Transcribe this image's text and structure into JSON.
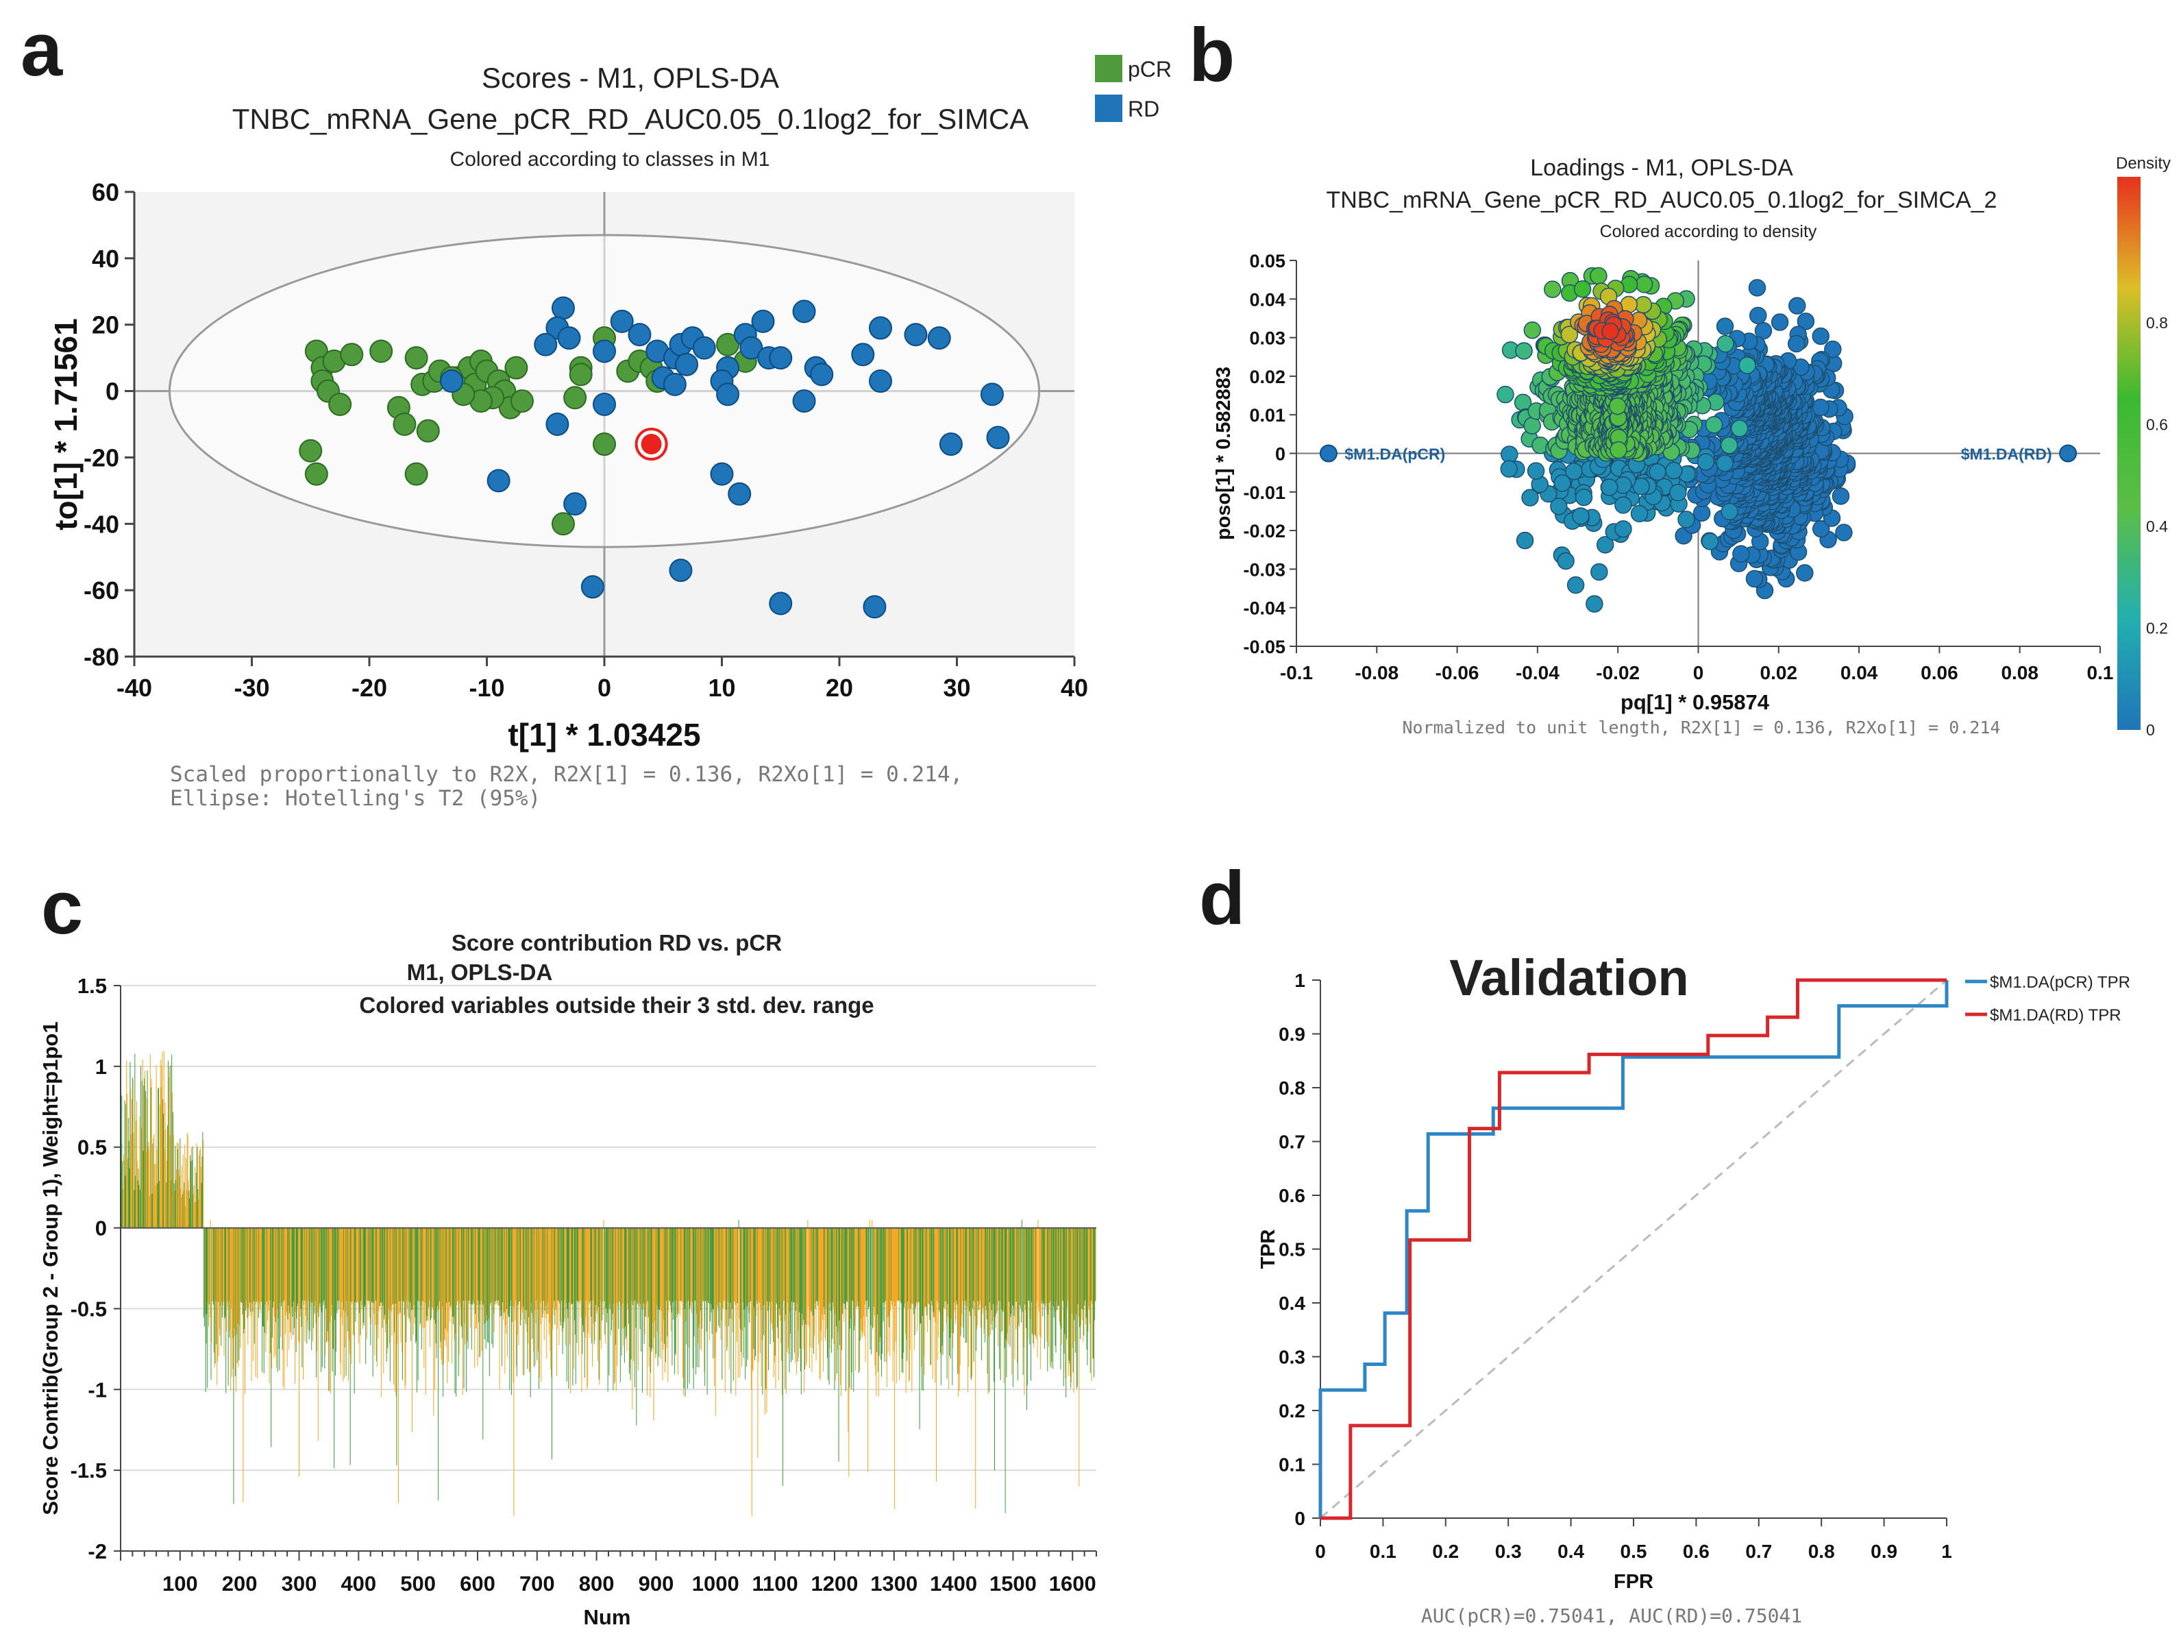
{
  "panels": {
    "a": "a",
    "b": "b",
    "c": "c",
    "d": "d"
  },
  "colors": {
    "pcr": "#4f9a3c",
    "rd": "#1f75b8",
    "highlight": "#e8231e",
    "green_bar": "#3d9a3d",
    "orange_bar": "#f5a51e",
    "roc_pcr": "#2d86c5",
    "roc_rd": "#d8262a"
  },
  "chart_data": [
    {
      "id": "a",
      "type": "scatter",
      "title": "Scores - M1, OPLS-DA",
      "subtitle": "TNBC_mRNA_Gene_pCR_RD_AUC0.05_0.1log2_for_SIMCA",
      "subtitle2": "Colored according to classes in M1",
      "xlabel": "t[1] * 1.03425",
      "ylabel": "to[1] * 1.71561",
      "xlim": [
        -40,
        40
      ],
      "ylim": [
        -80,
        60
      ],
      "xticks": [
        -40,
        -30,
        -20,
        -10,
        0,
        10,
        20,
        30,
        40
      ],
      "yticks": [
        -80,
        -60,
        -40,
        -20,
        0,
        20,
        40,
        60
      ],
      "ellipse": {
        "cx": 0,
        "cy": 0,
        "rx": 37,
        "ry": 47
      },
      "legend": [
        {
          "name": "pCR",
          "color": "#4f9a3c"
        },
        {
          "name": "RD",
          "color": "#1f75b8"
        }
      ],
      "footnote": "Scaled proportionally to R2X, R2X[1] = 0.136, R2Xo[1] = 0.214,",
      "footnote2": "Ellipse: Hotelling's T2 (95%)",
      "series": [
        {
          "name": "pCR",
          "points": [
            [
              -24.5,
              12
            ],
            [
              -24,
              7
            ],
            [
              -23,
              9
            ],
            [
              -21.5,
              11
            ],
            [
              -19,
              12
            ],
            [
              -16,
              10
            ],
            [
              -24,
              3
            ],
            [
              -23.5,
              0
            ],
            [
              -22.5,
              -4
            ],
            [
              -17.5,
              -5
            ],
            [
              -17,
              -10
            ],
            [
              -15.5,
              2
            ],
            [
              -14.5,
              3
            ],
            [
              -14,
              6
            ],
            [
              -15,
              -12
            ],
            [
              -12.5,
              4
            ],
            [
              -11.5,
              7
            ],
            [
              -11,
              2
            ],
            [
              -10.5,
              9
            ],
            [
              -10,
              6
            ],
            [
              -9,
              3
            ],
            [
              -8.5,
              0
            ],
            [
              -8,
              -5
            ],
            [
              -9.5,
              -2
            ],
            [
              -10.5,
              -3
            ],
            [
              -12,
              -1
            ],
            [
              -13,
              4
            ],
            [
              -7.5,
              7
            ],
            [
              -7,
              -3
            ],
            [
              -2,
              7
            ],
            [
              -2,
              5
            ],
            [
              -2.5,
              -2
            ],
            [
              0,
              16
            ],
            [
              2,
              6
            ],
            [
              3,
              9
            ],
            [
              4,
              7
            ],
            [
              4.5,
              3
            ],
            [
              10.5,
              14
            ],
            [
              12,
              9
            ],
            [
              -25,
              -18
            ],
            [
              -24.5,
              -25
            ],
            [
              -16,
              -25
            ],
            [
              -3.5,
              -40
            ],
            [
              0,
              -16
            ]
          ]
        },
        {
          "name": "RD",
          "points": [
            [
              -3.5,
              25
            ],
            [
              -4,
              19
            ],
            [
              -3,
              16
            ],
            [
              1.5,
              21
            ],
            [
              3,
              17
            ],
            [
              4.5,
              12
            ],
            [
              6,
              10
            ],
            [
              6.5,
              14
            ],
            [
              7.5,
              16
            ],
            [
              8.5,
              13
            ],
            [
              10.5,
              7
            ],
            [
              10,
              3
            ],
            [
              12,
              17
            ],
            [
              12.5,
              13
            ],
            [
              13.5,
              21
            ],
            [
              14,
              10
            ],
            [
              15,
              10
            ],
            [
              17,
              24
            ],
            [
              18,
              7
            ],
            [
              18.5,
              5
            ],
            [
              22,
              11
            ],
            [
              23.5,
              19
            ],
            [
              23.5,
              3
            ],
            [
              26.5,
              17
            ],
            [
              28.5,
              16
            ],
            [
              33,
              -1
            ],
            [
              33.5,
              -14
            ],
            [
              29.5,
              -16
            ],
            [
              17,
              -3
            ],
            [
              10.5,
              -1
            ],
            [
              -13,
              3
            ],
            [
              -5,
              14
            ],
            [
              5,
              4
            ],
            [
              7,
              8
            ],
            [
              -4,
              -10
            ],
            [
              0,
              -4
            ],
            [
              -9,
              -27
            ],
            [
              -2.5,
              -34
            ],
            [
              -1,
              -59
            ],
            [
              6.5,
              -54
            ],
            [
              10,
              -25
            ],
            [
              11.5,
              -31
            ],
            [
              15,
              -64
            ],
            [
              23,
              -65
            ],
            [
              0,
              12
            ],
            [
              6,
              2
            ]
          ]
        },
        {
          "name": "highlight",
          "points": [
            [
              4,
              -16
            ]
          ]
        }
      ]
    },
    {
      "id": "b",
      "type": "scatter",
      "title": "Loadings - M1, OPLS-DA",
      "subtitle": "TNBC_mRNA_Gene_pCR_RD_AUC0.05_0.1log2_for_SIMCA_2",
      "subtitle2": "Colored according to density",
      "xlabel": "pq[1] * 0.95874",
      "ylabel": "poso[1] * 0.582883",
      "xlim": [
        -0.1,
        0.1
      ],
      "ylim": [
        -0.05,
        0.05
      ],
      "xticks": [
        "-0.1",
        "-0.08",
        "-0.06",
        "-0.04",
        "-0.02",
        "0",
        "0.02",
        "0.04",
        "0.06",
        "0.08",
        "0.1"
      ],
      "yticks": [
        "-0.05",
        "-0.04",
        "-0.03",
        "-0.02",
        "-0.01",
        "0",
        "0.01",
        "0.02",
        "0.03",
        "0.04",
        "0.05"
      ],
      "colorbar_title": "Density",
      "colorbar_ticks": [
        "0",
        "0.2",
        "0.4",
        "0.6",
        "0.8"
      ],
      "label_pcr": "$M1.DA(pCR)",
      "label_rd": "$M1.DA(RD)",
      "anchor_points": [
        [
          -0.092,
          0
        ],
        [
          0.092,
          0
        ]
      ],
      "footnote": "Normalized to unit length, R2X[1] = 0.136, R2Xo[1] = 0.214",
      "cloud": {
        "count": 1500,
        "left_blob": {
          "cx": -0.02,
          "cy": 0.012,
          "sx": 0.012,
          "sy": 0.017
        },
        "right_blob": {
          "cx": 0.018,
          "cy": 0.001,
          "sx": 0.009,
          "sy": 0.016
        },
        "dense_center": [
          -0.022,
          0.032
        ]
      }
    },
    {
      "id": "c",
      "type": "bar",
      "title": "Score contribution RD vs. pCR",
      "subtitle": "M1, OPLS-DA",
      "subtitle2": "Colored variables outside their 3 std. dev. range",
      "xlabel": "Num",
      "ylabel": "Score Contrib(Group 2 - Group 1), Weight=p1po1",
      "ylim": [
        -2,
        1.5
      ],
      "xlim": [
        0,
        1640
      ],
      "xticks": [
        "100",
        "200",
        "300",
        "400",
        "500",
        "600",
        "700",
        "800",
        "900",
        "1000",
        "1100",
        "1200",
        "1300",
        "1400",
        "1500",
        "1600"
      ],
      "yticks": [
        "-2",
        "-1.5",
        "-1",
        "-0.5",
        "0",
        "0.5",
        "1",
        "1.5"
      ],
      "n_variables": 1640,
      "positive_until": 140,
      "positive_range": [
        0.2,
        1.1
      ],
      "negative_range": [
        -1.8,
        -0.5
      ],
      "series": [
        {
          "name": "green",
          "color": "#3d9a3d"
        },
        {
          "name": "orange",
          "color": "#f5a51e"
        }
      ]
    },
    {
      "id": "d",
      "type": "line",
      "title": "Validation",
      "xlabel": "FPR",
      "ylabel": "TPR",
      "xlim": [
        0,
        1
      ],
      "ylim": [
        0,
        1
      ],
      "xticks": [
        "0",
        "0.1",
        "0.2",
        "0.3",
        "0.4",
        "0.5",
        "0.6",
        "0.7",
        "0.8",
        "0.9",
        "1"
      ],
      "yticks": [
        "0",
        "0.1",
        "0.2",
        "0.3",
        "0.4",
        "0.5",
        "0.6",
        "0.7",
        "0.8",
        "0.9",
        "1"
      ],
      "footnote": "AUC(pCR)=0.75041, AUC(RD)=0.75041",
      "series": [
        {
          "name": "$M1.DA(pCR) TPR",
          "color": "#2d86c5",
          "points": [
            [
              0,
              0
            ],
            [
              0,
              0.238
            ],
            [
              0.071,
              0.238
            ],
            [
              0.071,
              0.286
            ],
            [
              0.103,
              0.286
            ],
            [
              0.103,
              0.381
            ],
            [
              0.138,
              0.381
            ],
            [
              0.138,
              0.571
            ],
            [
              0.172,
              0.571
            ],
            [
              0.172,
              0.714
            ],
            [
              0.276,
              0.714
            ],
            [
              0.276,
              0.762
            ],
            [
              0.483,
              0.762
            ],
            [
              0.483,
              0.857
            ],
            [
              0.828,
              0.857
            ],
            [
              0.828,
              0.952
            ],
            [
              1,
              0.952
            ],
            [
              1,
              1
            ]
          ]
        },
        {
          "name": "$M1.DA(RD) TPR",
          "color": "#d8262a",
          "points": [
            [
              0,
              0
            ],
            [
              0.048,
              0
            ],
            [
              0.048,
              0.172
            ],
            [
              0.143,
              0.172
            ],
            [
              0.143,
              0.517
            ],
            [
              0.238,
              0.517
            ],
            [
              0.238,
              0.724
            ],
            [
              0.286,
              0.724
            ],
            [
              0.286,
              0.828
            ],
            [
              0.429,
              0.828
            ],
            [
              0.429,
              0.862
            ],
            [
              0.619,
              0.862
            ],
            [
              0.619,
              0.897
            ],
            [
              0.714,
              0.897
            ],
            [
              0.714,
              0.931
            ],
            [
              0.762,
              0.931
            ],
            [
              0.762,
              1
            ],
            [
              1,
              1
            ]
          ]
        }
      ]
    }
  ]
}
